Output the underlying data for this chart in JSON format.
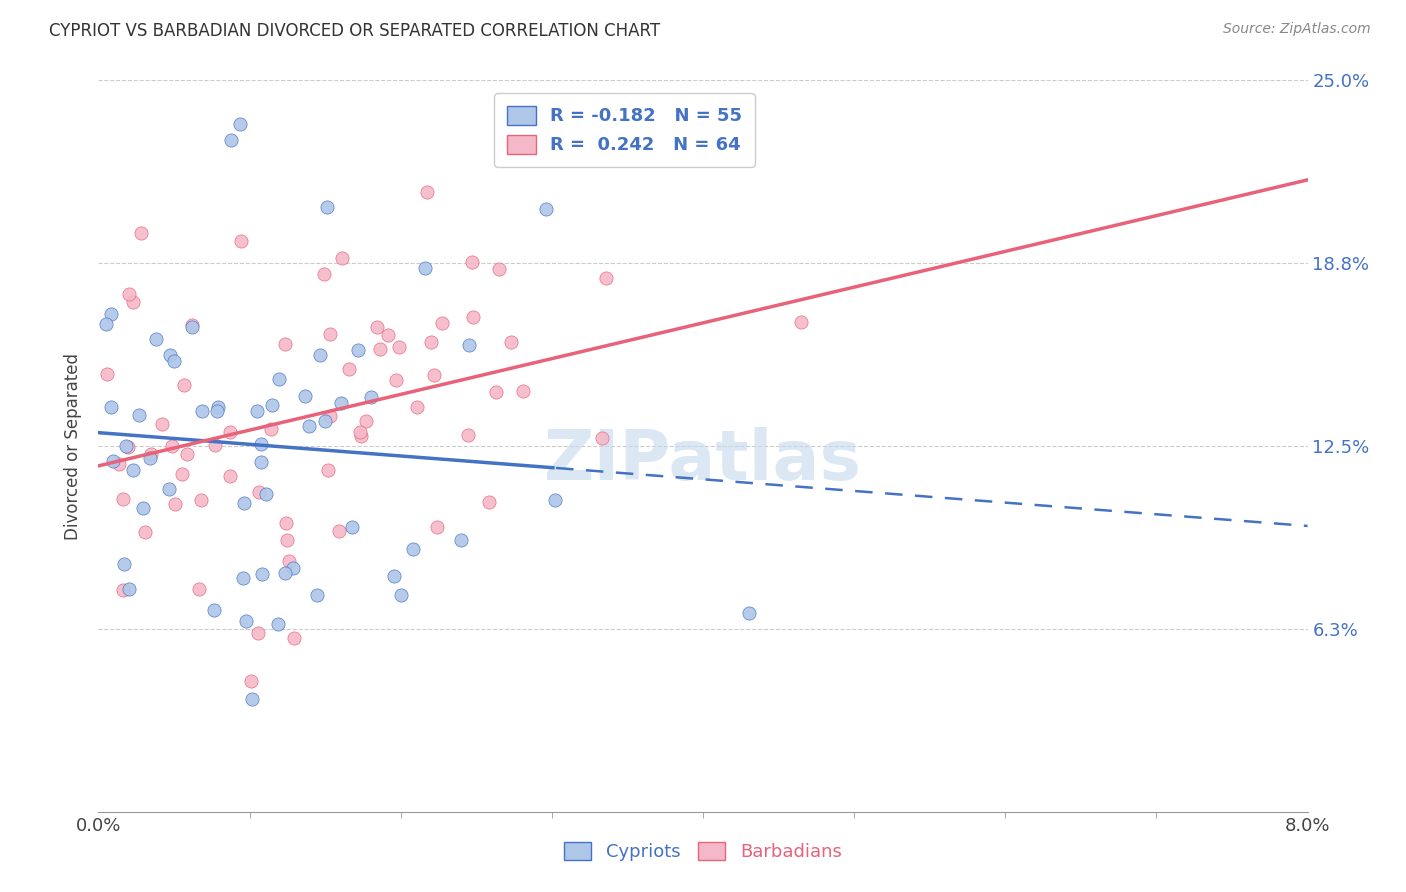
{
  "title": "CYPRIOT VS BARBADIAN DIVORCED OR SEPARATED CORRELATION CHART",
  "source": "Source: ZipAtlas.com",
  "ylabel": "Divorced or Separated",
  "cypriot_color": "#aec6e8",
  "barbadian_color": "#f4b8c8",
  "cypriot_line_color": "#4472c4",
  "barbadian_line_color": "#e8637a",
  "watermark": "ZIPatlas",
  "background_color": "#ffffff",
  "xmin": 0.0,
  "xmax": 0.08,
  "ymin": 0.0,
  "ymax": 0.25,
  "cypriot_R": -0.182,
  "cypriot_N": 55,
  "barbadian_R": 0.242,
  "barbadian_N": 64,
  "seed_cypriot": 17,
  "seed_barbadian": 99
}
